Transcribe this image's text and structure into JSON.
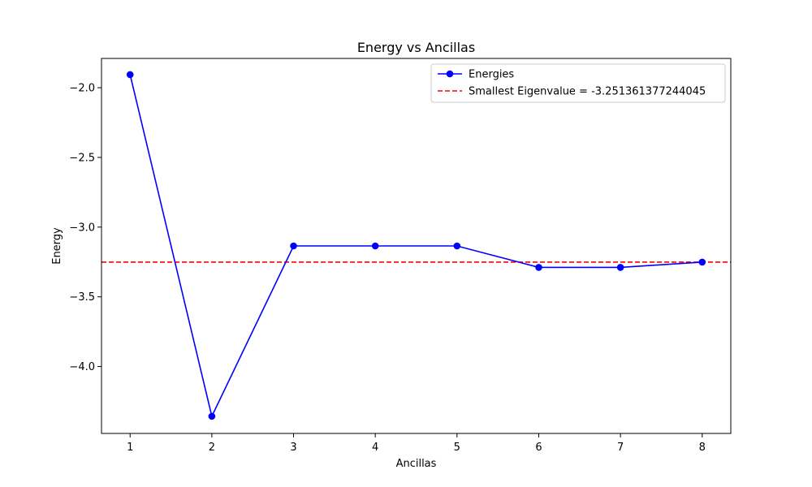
{
  "chart_data": {
    "type": "line",
    "title": "Energy vs Ancillas",
    "xlabel": "Ancillas",
    "ylabel": "Energy",
    "x": [
      1,
      2,
      3,
      4,
      5,
      6,
      7,
      8
    ],
    "xlim": [
      0.65,
      8.35
    ],
    "ylim": [
      -4.48,
      -1.79
    ],
    "xticks": [
      1,
      2,
      3,
      4,
      5,
      6,
      7,
      8
    ],
    "yticks": [
      -2.0,
      -2.5,
      -3.0,
      -3.5,
      -4.0
    ],
    "ytick_labels": [
      "−2.0",
      "−2.5",
      "−3.0",
      "−3.5",
      "−4.0"
    ],
    "grid": false,
    "legend_position": "upper right",
    "series": [
      {
        "name": "Energies",
        "values": [
          -1.906,
          -4.357,
          -3.135,
          -3.135,
          -3.135,
          -3.289,
          -3.289,
          -3.251
        ],
        "color": "#0000ff",
        "style": "solid",
        "marker": "circle"
      }
    ],
    "reference_lines": [
      {
        "name": "Smallest Eigenvalue = -3.251361377244045",
        "y": -3.251361377244045,
        "color": "#ff0000",
        "style": "dashed"
      }
    ]
  }
}
